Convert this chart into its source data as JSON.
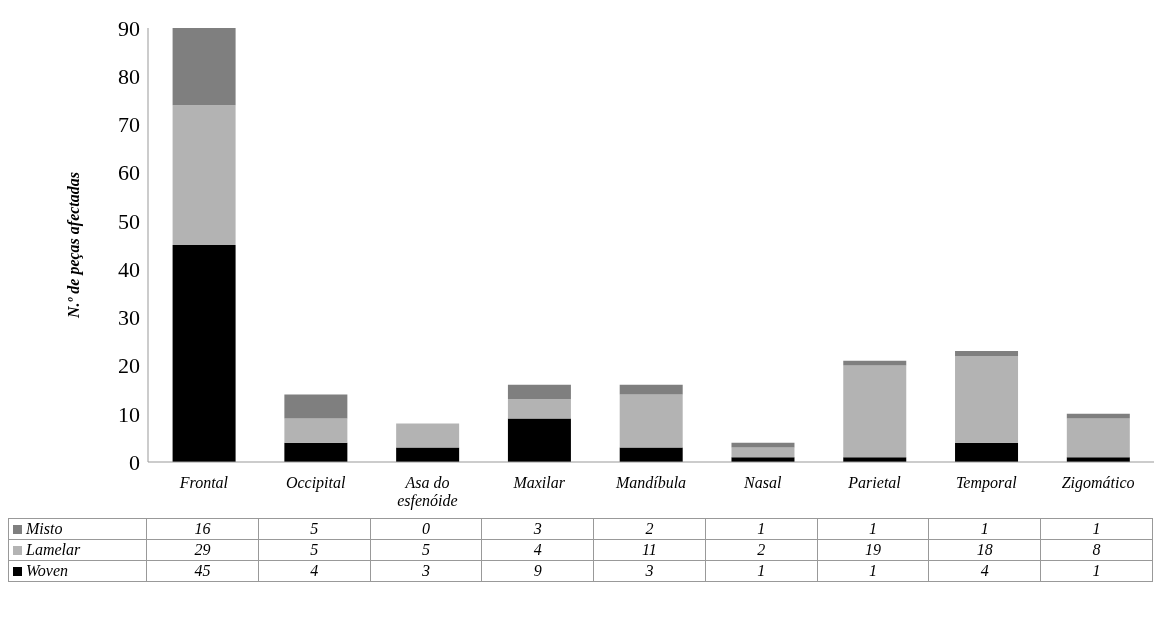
{
  "chart_data": {
    "type": "bar",
    "stacked": true,
    "ylabel": "N.º de peças afectadas",
    "categories": [
      "Frontal",
      "Occipital",
      "Asa do esfenóide",
      "Maxilar",
      "Mandíbula",
      "Nasal",
      "Parietal",
      "Temporal",
      "Zigomático"
    ],
    "series": [
      {
        "name": "Woven",
        "color": "#000000",
        "values": [
          45,
          4,
          3,
          9,
          3,
          1,
          1,
          4,
          1
        ]
      },
      {
        "name": "Lamelar",
        "color": "#b3b3b3",
        "values": [
          29,
          5,
          5,
          4,
          11,
          2,
          19,
          18,
          8
        ]
      },
      {
        "name": "Misto",
        "color": "#7f7f7f",
        "values": [
          16,
          5,
          0,
          3,
          2,
          1,
          1,
          1,
          1
        ]
      }
    ],
    "ylim": [
      0,
      90
    ],
    "yticks": [
      0,
      10,
      20,
      30,
      40,
      50,
      60,
      70,
      80,
      90
    ],
    "grid": false,
    "legend": "bottom",
    "data_labels": true
  }
}
